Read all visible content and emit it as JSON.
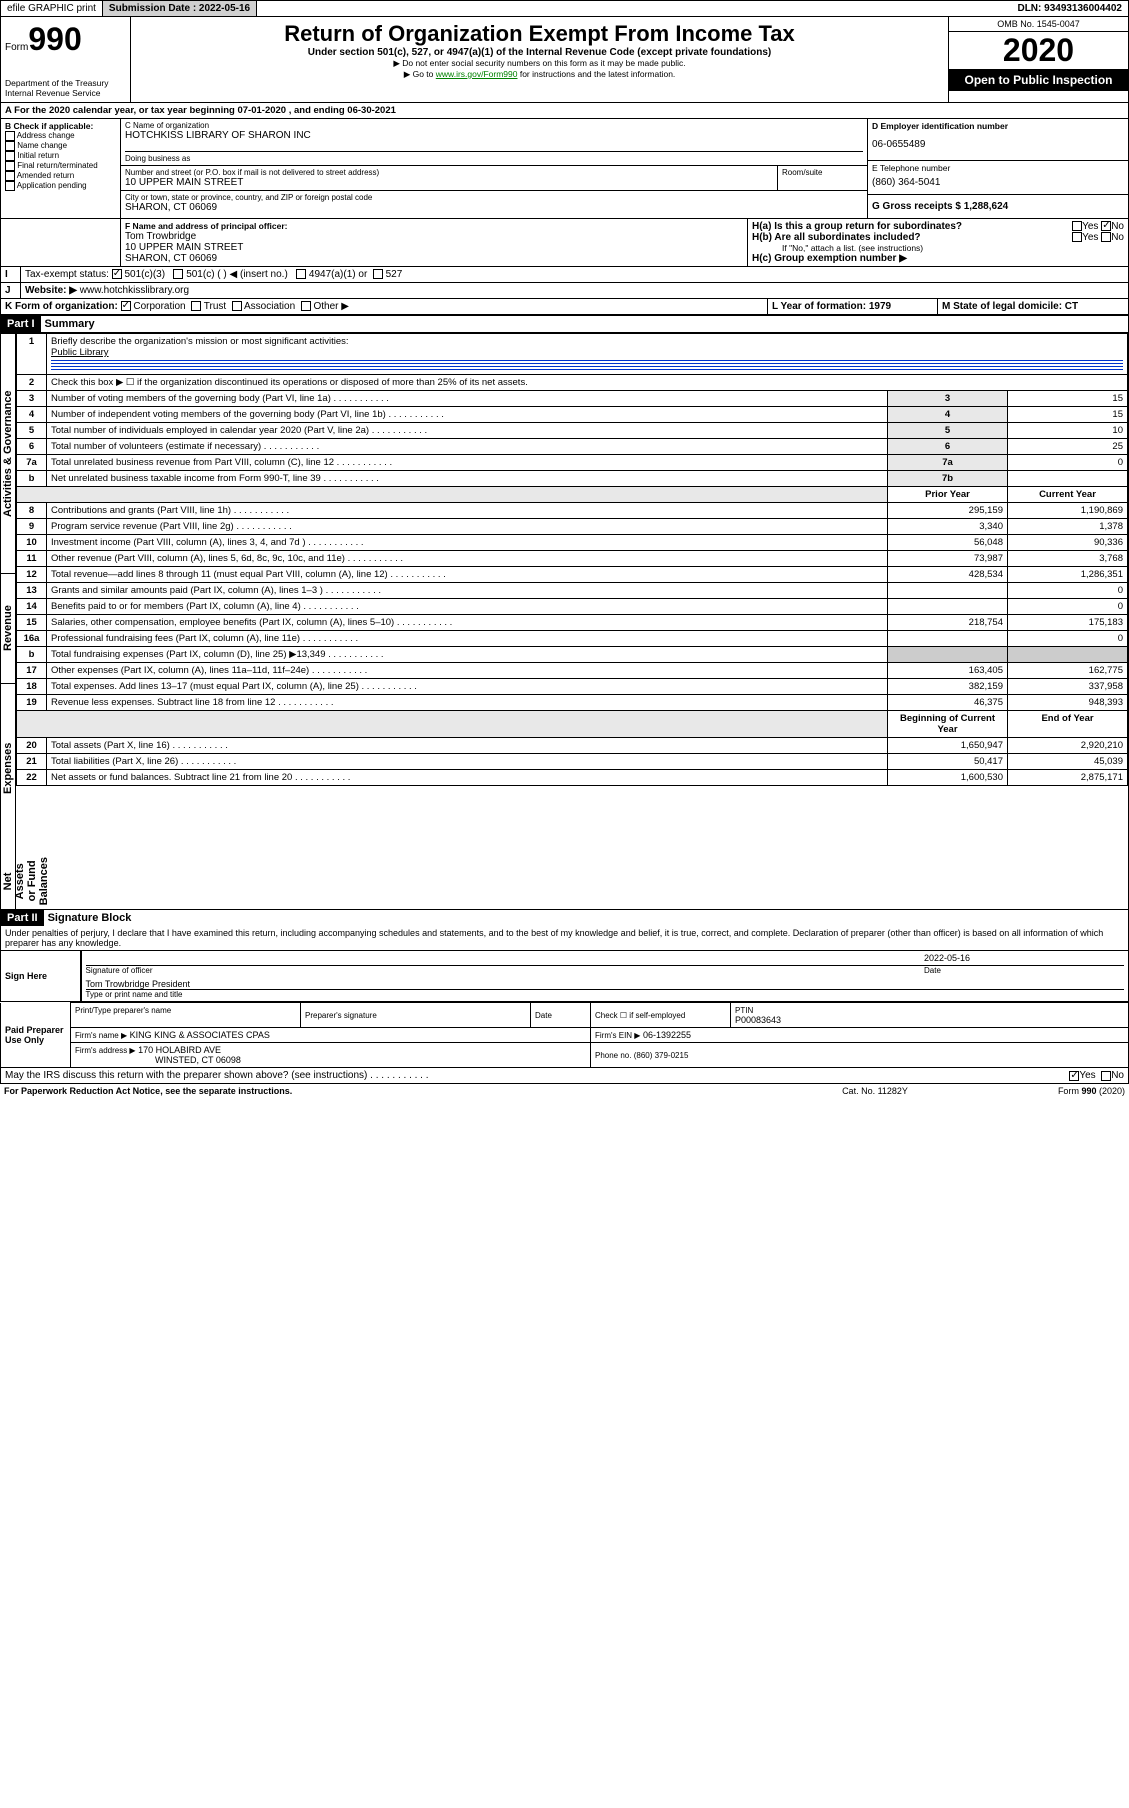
{
  "header": {
    "efile": "efile GRAPHIC print",
    "submission_label": "Submission Date : 2022-05-16",
    "dln_label": "DLN: 93493136004402"
  },
  "formhdr": {
    "form_word": "Form",
    "form_num": "990",
    "title": "Return of Organization Exempt From Income Tax",
    "subtitle": "Under section 501(c), 527, or 4947(a)(1) of the Internal Revenue Code (except private foundations)",
    "note1": "▶ Do not enter social security numbers on this form as it may be made public.",
    "note2_pre": "▶ Go to ",
    "note2_link": "www.irs.gov/Form990",
    "note2_post": " for instructions and the latest information.",
    "dept": "Department of the Treasury",
    "irs": "Internal Revenue Service",
    "omb": "OMB No. 1545-0047",
    "year": "2020",
    "inspect": "Open to Public Inspection"
  },
  "sectionA": {
    "line": "A For the 2020 calendar year, or tax year beginning 07-01-2020   , and ending 06-30-2021",
    "B_label": "B Check if applicable:",
    "B_items": [
      "Address change",
      "Name change",
      "Initial return",
      "Final return/terminated",
      "Amended return",
      "Application pending"
    ],
    "C_label": "C Name of organization",
    "C_name": "HOTCHKISS LIBRARY OF SHARON INC",
    "dba_label": "Doing business as",
    "street_label": "Number and street (or P.O. box if mail is not delivered to street address)",
    "street": "10 UPPER MAIN STREET",
    "room_label": "Room/suite",
    "city_label": "City or town, state or province, country, and ZIP or foreign postal code",
    "city": "SHARON, CT  06069",
    "F_label": "F Name and address of principal officer:",
    "F_name": "Tom Trowbridge",
    "F_addr1": "10 UPPER MAIN STREET",
    "F_addr2": "SHARON, CT  06069",
    "D_label": "D Employer identification number",
    "D_val": "06-0655489",
    "E_label": "E Telephone number",
    "E_val": "(860) 364-5041",
    "G_label": "G Gross receipts $ 1,288,624",
    "Ha_label": "H(a)  Is this a group return for subordinates?",
    "Hb_label": "H(b)  Are all subordinates included?",
    "Hb_note": "If \"No,\" attach a list. (see instructions)",
    "Hc_label": "H(c)  Group exemption number ▶",
    "yes": "Yes",
    "no": "No"
  },
  "lineI": {
    "label": "I",
    "tax_label": "Tax-exempt status:",
    "c3": "501(c)(3)",
    "c": "501(c) (   ) ◀ (insert no.)",
    "a1": "4947(a)(1) or",
    "s527": "527"
  },
  "lineJ": {
    "label": "J",
    "web_label": "Website: ▶",
    "web": "  www.hotchkisslibrary.org"
  },
  "lineK": {
    "label": "K Form of organization:",
    "corp": "Corporation",
    "trust": "Trust",
    "assoc": "Association",
    "other": "Other ▶",
    "L_label": "L Year of formation: 1979",
    "M_label": "M State of legal domicile: CT"
  },
  "part1": {
    "hdr": "Part I",
    "title": "Summary",
    "side1": "Activities & Governance",
    "side2": "Revenue",
    "side3": "Expenses",
    "side4": "Net Assets or Fund Balances",
    "r1_label": "Briefly describe the organization's mission or most significant activities:",
    "r1_val": "Public Library",
    "r2_label": "Check this box ▶ ☐  if the organization discontinued its operations or disposed of more than 25% of its net assets.",
    "prior_hdr": "Prior Year",
    "curr_hdr": "Current Year",
    "begin_hdr": "Beginning of Current Year",
    "end_hdr": "End of Year",
    "rows_gov": [
      {
        "n": "3",
        "t": "Number of voting members of the governing body (Part VI, line 1a)",
        "c": "3",
        "v": "15"
      },
      {
        "n": "4",
        "t": "Number of independent voting members of the governing body (Part VI, line 1b)",
        "c": "4",
        "v": "15"
      },
      {
        "n": "5",
        "t": "Total number of individuals employed in calendar year 2020 (Part V, line 2a)",
        "c": "5",
        "v": "10"
      },
      {
        "n": "6",
        "t": "Total number of volunteers (estimate if necessary)",
        "c": "6",
        "v": "25"
      },
      {
        "n": "7a",
        "t": "Total unrelated business revenue from Part VIII, column (C), line 12",
        "c": "7a",
        "v": "0"
      },
      {
        "n": "b",
        "t": "Net unrelated business taxable income from Form 990-T, line 39",
        "c": "7b",
        "v": ""
      }
    ],
    "rows_rev": [
      {
        "n": "8",
        "t": "Contributions and grants (Part VIII, line 1h)",
        "p": "295,159",
        "c": "1,190,869"
      },
      {
        "n": "9",
        "t": "Program service revenue (Part VIII, line 2g)",
        "p": "3,340",
        "c": "1,378"
      },
      {
        "n": "10",
        "t": "Investment income (Part VIII, column (A), lines 3, 4, and 7d )",
        "p": "56,048",
        "c": "90,336"
      },
      {
        "n": "11",
        "t": "Other revenue (Part VIII, column (A), lines 5, 6d, 8c, 9c, 10c, and 11e)",
        "p": "73,987",
        "c": "3,768"
      },
      {
        "n": "12",
        "t": "Total revenue—add lines 8 through 11 (must equal Part VIII, column (A), line 12)",
        "p": "428,534",
        "c": "1,286,351"
      }
    ],
    "rows_exp": [
      {
        "n": "13",
        "t": "Grants and similar amounts paid (Part IX, column (A), lines 1–3 )",
        "p": "",
        "c": "0"
      },
      {
        "n": "14",
        "t": "Benefits paid to or for members (Part IX, column (A), line 4)",
        "p": "",
        "c": "0"
      },
      {
        "n": "15",
        "t": "Salaries, other compensation, employee benefits (Part IX, column (A), lines 5–10)",
        "p": "218,754",
        "c": "175,183"
      },
      {
        "n": "16a",
        "t": "Professional fundraising fees (Part IX, column (A), line 11e)",
        "p": "",
        "c": "0"
      },
      {
        "n": "b",
        "t": "Total fundraising expenses (Part IX, column (D), line 25) ▶13,349",
        "p": "__gray__",
        "c": "__gray__"
      },
      {
        "n": "17",
        "t": "Other expenses (Part IX, column (A), lines 11a–11d, 11f–24e)",
        "p": "163,405",
        "c": "162,775"
      },
      {
        "n": "18",
        "t": "Total expenses. Add lines 13–17 (must equal Part IX, column (A), line 25)",
        "p": "382,159",
        "c": "337,958"
      },
      {
        "n": "19",
        "t": "Revenue less expenses. Subtract line 18 from line 12",
        "p": "46,375",
        "c": "948,393"
      }
    ],
    "rows_net": [
      {
        "n": "20",
        "t": "Total assets (Part X, line 16)",
        "p": "1,650,947",
        "c": "2,920,210"
      },
      {
        "n": "21",
        "t": "Total liabilities (Part X, line 26)",
        "p": "50,417",
        "c": "45,039"
      },
      {
        "n": "22",
        "t": "Net assets or fund balances. Subtract line 21 from line 20",
        "p": "1,600,530",
        "c": "2,875,171"
      }
    ]
  },
  "part2": {
    "hdr": "Part II",
    "title": "Signature Block",
    "perjury": "Under penalties of perjury, I declare that I have examined this return, including accompanying schedules and statements, and to the best of my knowledge and belief, it is true, correct, and complete. Declaration of preparer (other than officer) is based on all information of which preparer has any knowledge.",
    "sign_here": "Sign Here",
    "sig_officer": "Signature of officer",
    "sig_date": "2022-05-16",
    "date_lbl": "Date",
    "officer_name": "Tom Trowbridge President",
    "type_name": "Type or print name and title",
    "paid": "Paid Preparer Use Only",
    "prep_name_lbl": "Print/Type preparer's name",
    "prep_sig_lbl": "Preparer's signature",
    "check_self": "Check ☐ if self-employed",
    "ptin_lbl": "PTIN",
    "ptin": "P00083643",
    "firm_name_lbl": "Firm's name   ▶",
    "firm_name": "KING KING & ASSOCIATES CPAS",
    "firm_ein_lbl": "Firm's EIN ▶",
    "firm_ein": "06-1392255",
    "firm_addr_lbl": "Firm's address ▶",
    "firm_addr1": "170 HOLABIRD AVE",
    "firm_addr2": "WINSTED, CT  06098",
    "phone_lbl": "Phone no. (860) 379-0215",
    "discuss": "May the IRS discuss this return with the preparer shown above? (see instructions)",
    "paperwork": "For Paperwork Reduction Act Notice, see the separate instructions.",
    "catno": "Cat. No. 11282Y",
    "formfoot": "Form 990 (2020)"
  }
}
